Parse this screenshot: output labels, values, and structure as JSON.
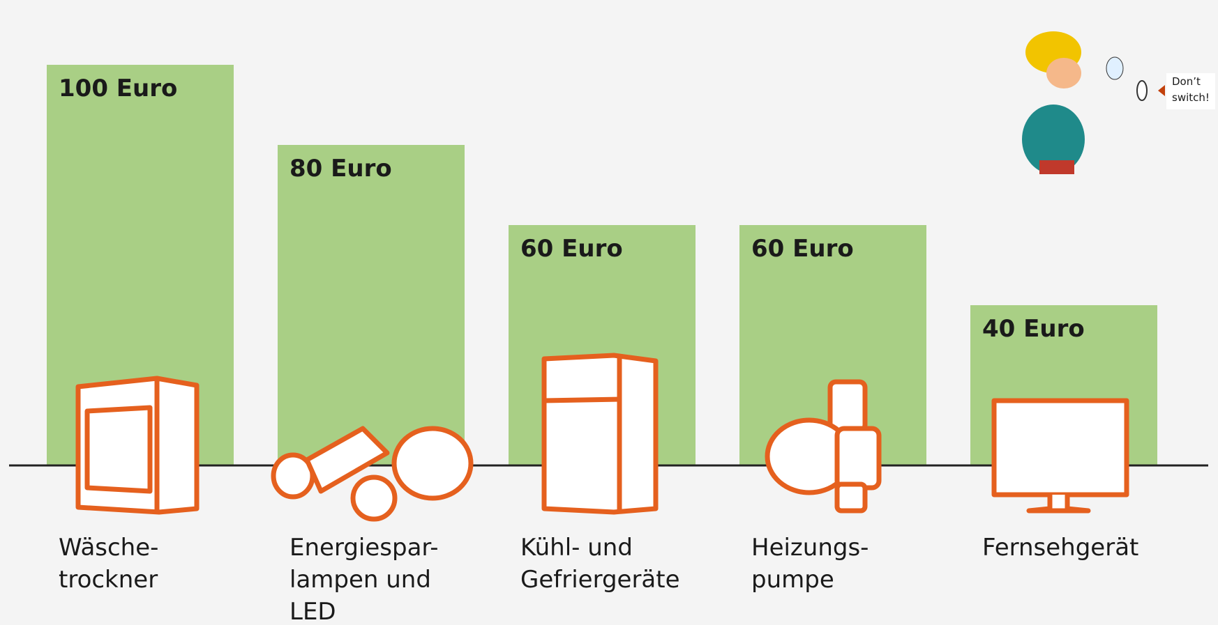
{
  "chart_data": {
    "type": "bar",
    "categories": [
      [
        "Wäsche-",
        "trockner"
      ],
      [
        "Energiespar-",
        "lampen und",
        "LED"
      ],
      [
        "Kühl- und",
        "Gefriergeräte"
      ],
      [
        "Heizungs-",
        "pumpe"
      ],
      [
        "Fernsehgerät"
      ]
    ],
    "values": [
      100,
      80,
      60,
      60,
      40
    ],
    "value_labels": [
      "100 Euro",
      "80 Euro",
      "60 Euro",
      "60 Euro",
      "40 Euro"
    ],
    "color": "#a9cf85",
    "ylim": [
      0,
      100
    ]
  },
  "cartoon": {
    "speech": [
      "Don’t",
      "switch!"
    ]
  }
}
